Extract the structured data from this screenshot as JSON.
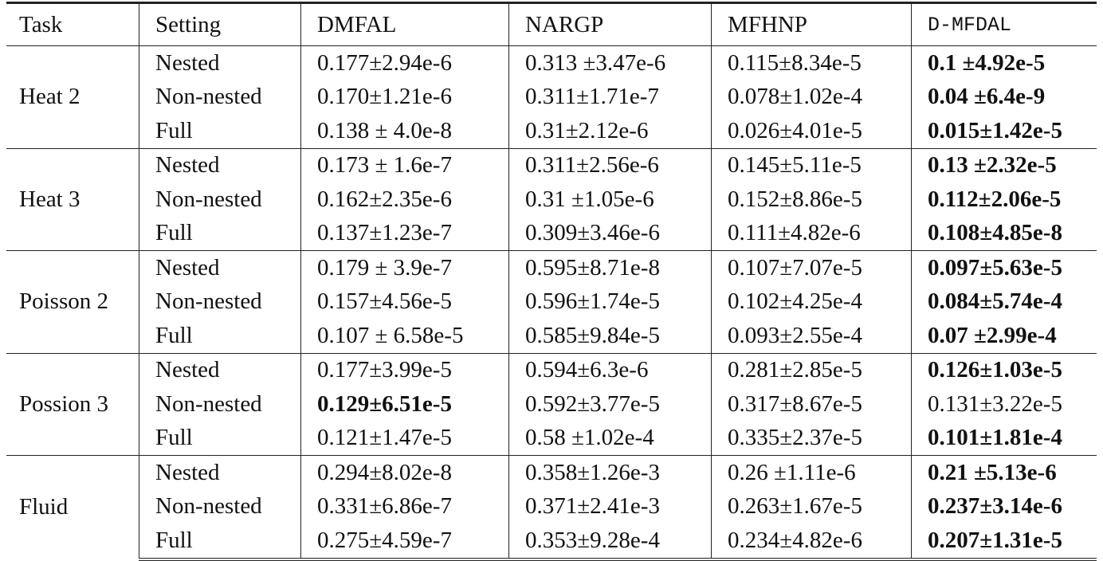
{
  "table": {
    "header": [
      "Task",
      "Setting",
      "DMFAL",
      "NARGP",
      "MFHNP",
      "D-MFDAL"
    ],
    "groups": [
      {
        "task": "Heat 2",
        "rows": [
          {
            "setting": "Nested",
            "cells": [
              "0.177±2.94e-6",
              "0.313 ±3.47e-6",
              "0.115±8.34e-5",
              "0.1 ±4.92e-5"
            ],
            "bold": 3
          },
          {
            "setting": "Non-nested",
            "cells": [
              "0.170±1.21e-6",
              "0.311±1.71e-7",
              "0.078±1.02e-4",
              "0.04 ±6.4e-9"
            ],
            "bold": 3
          },
          {
            "setting": "Full",
            "cells": [
              "0.138 ± 4.0e-8",
              "0.31±2.12e-6",
              "0.026±4.01e-5",
              "0.015±1.42e-5"
            ],
            "bold": 3
          }
        ]
      },
      {
        "task": "Heat 3",
        "rows": [
          {
            "setting": "Nested",
            "cells": [
              "0.173 ± 1.6e-7",
              "0.311±2.56e-6",
              "0.145±5.11e-5",
              "0.13 ±2.32e-5"
            ],
            "bold": 3
          },
          {
            "setting": "Non-nested",
            "cells": [
              "0.162±2.35e-6",
              "0.31 ±1.05e-6",
              "0.152±8.86e-5",
              "0.112±2.06e-5"
            ],
            "bold": 3
          },
          {
            "setting": "Full",
            "cells": [
              "0.137±1.23e-7",
              "0.309±3.46e-6",
              "0.111±4.82e-6",
              "0.108±4.85e-8"
            ],
            "bold": 3
          }
        ]
      },
      {
        "task": "Poisson 2",
        "rows": [
          {
            "setting": "Nested",
            "cells": [
              "0.179 ± 3.9e-7",
              "0.595±8.71e-8",
              "0.107±7.07e-5",
              "0.097±5.63e-5"
            ],
            "bold": 3
          },
          {
            "setting": "Non-nested",
            "cells": [
              "0.157±4.56e-5",
              "0.596±1.74e-5",
              "0.102±4.25e-4",
              "0.084±5.74e-4"
            ],
            "bold": 3
          },
          {
            "setting": "Full",
            "cells": [
              "0.107 ± 6.58e-5",
              "0.585±9.84e-5",
              "0.093±2.55e-4",
              "0.07 ±2.99e-4"
            ],
            "bold": 3
          }
        ]
      },
      {
        "task": "Possion 3",
        "rows": [
          {
            "setting": "Nested",
            "cells": [
              "0.177±3.99e-5",
              "0.594±6.3e-6",
              "0.281±2.85e-5",
              "0.126±1.03e-5"
            ],
            "bold": 3
          },
          {
            "setting": "Non-nested",
            "cells": [
              "0.129±6.51e-5",
              "0.592±3.77e-5",
              "0.317±8.67e-5",
              "0.131±3.22e-5"
            ],
            "bold": 0
          },
          {
            "setting": "Full",
            "cells": [
              "0.121±1.47e-5",
              "0.58 ±1.02e-4",
              "0.335±2.37e-5",
              "0.101±1.81e-4"
            ],
            "bold": 3
          }
        ]
      },
      {
        "task": "Fluid",
        "rows": [
          {
            "setting": "Nested",
            "cells": [
              "0.294±8.02e-8",
              "0.358±1.26e-3",
              "0.26 ±1.11e-6",
              "0.21 ±5.13e-6"
            ],
            "bold": 3
          },
          {
            "setting": "Non-nested",
            "cells": [
              "0.331±6.86e-7",
              "0.371±2.41e-3",
              "0.263±1.67e-5",
              "0.237±3.14e-6"
            ],
            "bold": 3
          },
          {
            "setting": "Full",
            "cells": [
              "0.275±4.59e-7",
              "0.353±9.28e-4",
              "0.234±4.82e-6",
              "0.207±1.31e-5"
            ],
            "bold": 3
          }
        ]
      }
    ]
  }
}
